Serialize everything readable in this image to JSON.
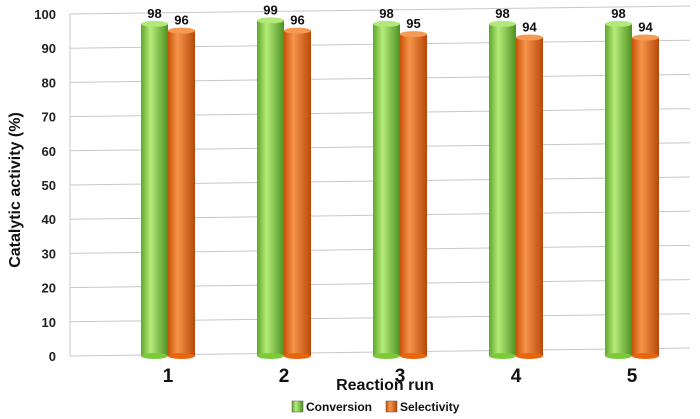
{
  "chart_data": {
    "type": "bar",
    "xlabel": "Reaction run",
    "ylabel": "Catalytic activity (%)",
    "categories": [
      "1",
      "2",
      "3",
      "4",
      "5"
    ],
    "series": [
      {
        "name": "Conversion",
        "values": [
          98,
          99,
          98,
          98,
          98
        ],
        "color": "#7cc93a"
      },
      {
        "name": "Selectivity",
        "values": [
          96,
          96,
          95,
          94,
          94
        ],
        "color": "#e8650f"
      }
    ],
    "ylim": [
      0,
      100
    ],
    "yticks": [
      0,
      10,
      20,
      30,
      40,
      50,
      60,
      70,
      80,
      90,
      100
    ],
    "grid": true,
    "legend": "bottom-center"
  }
}
